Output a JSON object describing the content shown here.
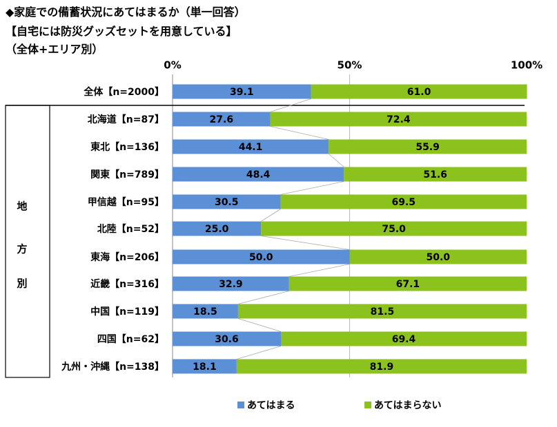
{
  "title": {
    "line1": "◆家庭での備蓄状況にあてはまるか（単一回答）",
    "line2": "【自宅には防災グッズセットを用意している】",
    "line3": "（全体+エリア別）"
  },
  "colors": {
    "yes": "#5b8fd6",
    "no": "#8cc21e",
    "connector": "#aaaaaa"
  },
  "chart_data": {
    "type": "bar",
    "orientation": "horizontal",
    "stacked": true,
    "percent_stacked": true,
    "axis_ticks": [
      "0%",
      "50%",
      "100%"
    ],
    "xlim": [
      0,
      100
    ],
    "group_label": [
      "地",
      "方",
      "別"
    ],
    "categories": [
      "全体【n=2000】",
      "北海道【n=87】",
      "東北【n=136】",
      "関東【n=789】",
      "甲信越【n=95】",
      "北陸【n=52】",
      "東海【n=206】",
      "近畿【n=316】",
      "中国【n=119】",
      "四国【n=62】",
      "九州・沖縄【n=138】"
    ],
    "series": [
      {
        "name": "あてはまる",
        "values": [
          39.1,
          27.6,
          44.1,
          48.4,
          30.5,
          25.0,
          50.0,
          32.9,
          18.5,
          30.6,
          18.1
        ],
        "labels": [
          "39.1",
          "27.6",
          "44.1",
          "48.4",
          "30.5",
          "25.0",
          "50.0",
          "32.9",
          "18.5",
          "30.6",
          "18.1"
        ]
      },
      {
        "name": "あてはまらない",
        "values": [
          61.0,
          72.4,
          55.9,
          51.6,
          69.5,
          75.0,
          50.0,
          67.1,
          81.5,
          69.4,
          81.9
        ],
        "labels": [
          "61.0",
          "72.4",
          "55.9",
          "51.6",
          "69.5",
          "75.0",
          "50.0",
          "67.1",
          "81.5",
          "69.4",
          "81.9"
        ]
      }
    ],
    "legend": [
      "あてはまる",
      "あてはまらない"
    ],
    "legend_position": "bottom"
  }
}
